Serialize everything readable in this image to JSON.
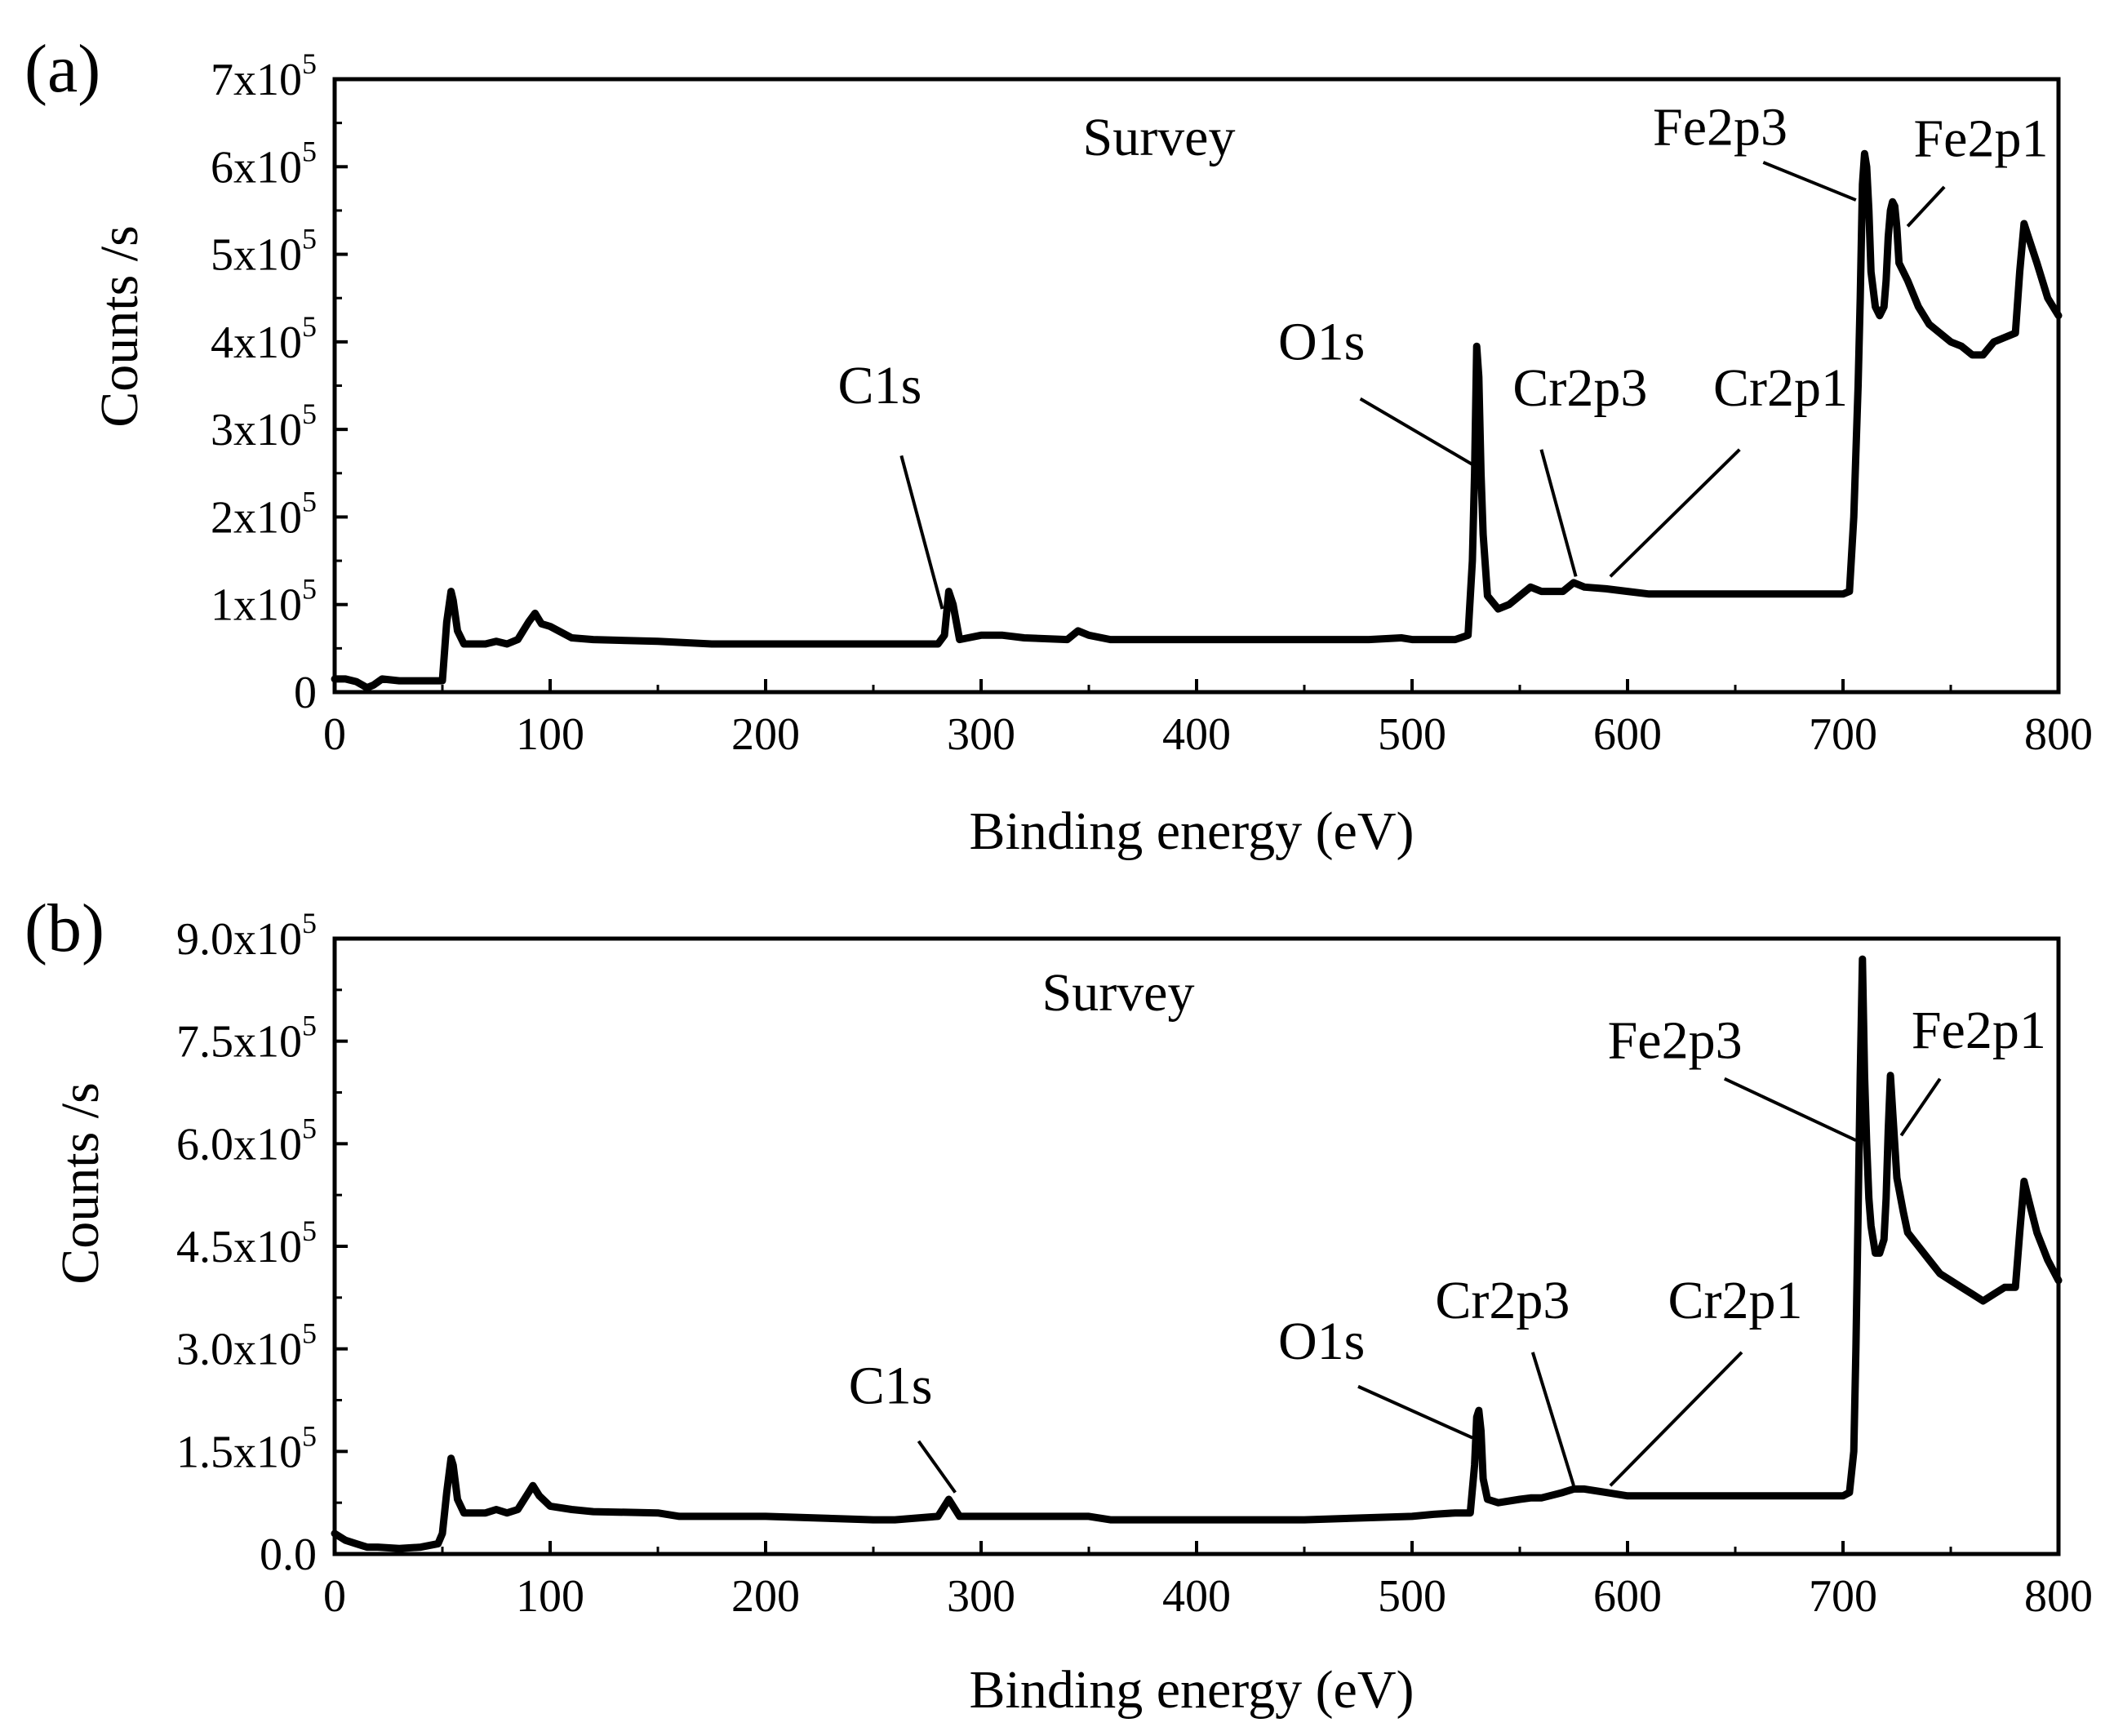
{
  "chart_data": [
    {
      "type": "line",
      "panel_label": "(a)",
      "title": "Survey",
      "xlabel": "Binding energy (eV)",
      "ylabel": "Counts /s",
      "xlim": [
        0,
        800
      ],
      "ylim": [
        0,
        700000
      ],
      "xticks": [
        {
          "value": 0,
          "label": "0"
        },
        {
          "value": 100,
          "label": "100"
        },
        {
          "value": 200,
          "label": "200"
        },
        {
          "value": 300,
          "label": "300"
        },
        {
          "value": 400,
          "label": "400"
        },
        {
          "value": 500,
          "label": "500"
        },
        {
          "value": 600,
          "label": "600"
        },
        {
          "value": 700,
          "label": "700"
        },
        {
          "value": 800,
          "label": "800"
        }
      ],
      "yticks": [
        {
          "value": 0,
          "label": "0",
          "exp": ""
        },
        {
          "value": 100000,
          "label": "1x10",
          "exp": "5"
        },
        {
          "value": 200000,
          "label": "2x10",
          "exp": "5"
        },
        {
          "value": 300000,
          "label": "3x10",
          "exp": "5"
        },
        {
          "value": 400000,
          "label": "4x10",
          "exp": "5"
        },
        {
          "value": 500000,
          "label": "5x10",
          "exp": "5"
        },
        {
          "value": 600000,
          "label": "6x10",
          "exp": "5"
        },
        {
          "value": 700000,
          "label": "7x10",
          "exp": "5"
        }
      ],
      "x": [
        0,
        5,
        10,
        15,
        18,
        22,
        30,
        35,
        50,
        52,
        54,
        55,
        57,
        60,
        70,
        75,
        80,
        85,
        90,
        93,
        96,
        100,
        110,
        120,
        150,
        175,
        200,
        240,
        270,
        280,
        283,
        285,
        287,
        290,
        300,
        310,
        320,
        340,
        345,
        350,
        360,
        400,
        440,
        480,
        495,
        500,
        510,
        520,
        526,
        528,
        529,
        530,
        531,
        532,
        533,
        535,
        540,
        545,
        555,
        560,
        570,
        575,
        580,
        590,
        600,
        610,
        620,
        640,
        680,
        700,
        703,
        705,
        707,
        708,
        709,
        710,
        711,
        712,
        713,
        715,
        717,
        719,
        720,
        721,
        722,
        723,
        724,
        725,
        726,
        728,
        730,
        735,
        740,
        745,
        750,
        755,
        760,
        765,
        770,
        775,
        780,
        782,
        784,
        786,
        790,
        795,
        800
      ],
      "values": [
        15000,
        15000,
        12000,
        5000,
        8000,
        15000,
        13000,
        13000,
        13000,
        80000,
        115000,
        105000,
        70000,
        55000,
        55000,
        58000,
        55000,
        60000,
        80000,
        90000,
        78000,
        75000,
        62000,
        60000,
        58000,
        55000,
        55000,
        55000,
        55000,
        55000,
        65000,
        115000,
        100000,
        60000,
        65000,
        65000,
        62000,
        60000,
        70000,
        65000,
        60000,
        60000,
        60000,
        60000,
        62000,
        60000,
        60000,
        60000,
        65000,
        150000,
        250000,
        395000,
        360000,
        250000,
        180000,
        110000,
        95000,
        100000,
        120000,
        115000,
        115000,
        125000,
        120000,
        118000,
        115000,
        112000,
        112000,
        112000,
        112000,
        112000,
        115000,
        200000,
        350000,
        450000,
        580000,
        615000,
        600000,
        550000,
        480000,
        440000,
        430000,
        440000,
        470000,
        520000,
        550000,
        560000,
        555000,
        530000,
        490000,
        480000,
        470000,
        440000,
        420000,
        410000,
        400000,
        395000,
        385000,
        385000,
        400000,
        405000,
        410000,
        480000,
        535000,
        520000,
        490000,
        450000,
        430000
      ],
      "annotations": [
        {
          "text": "C1s",
          "tx": 253,
          "ty": 330000,
          "x1": 263,
          "y1": 270000,
          "x2": 282,
          "y2": 95000
        },
        {
          "text": "O1s",
          "tx": 458,
          "ty": 380000,
          "x1": 476,
          "y1": 335000,
          "x2": 528,
          "y2": 260000
        },
        {
          "text": "Cr2p3",
          "tx": 578,
          "ty": 327000,
          "x1": 560,
          "y1": 277000,
          "x2": 576,
          "y2": 132000
        },
        {
          "text": "Cr2p1",
          "tx": 671,
          "ty": 327000,
          "x1": 652,
          "y1": 277000,
          "x2": 592,
          "y2": 132000
        },
        {
          "text": "Fe2p3",
          "tx": 643,
          "ty": 625000,
          "x1": 663,
          "y1": 605000,
          "x2": 706,
          "y2": 562000
        },
        {
          "text": "Fe2p1",
          "tx": 764,
          "ty": 612000,
          "x1": 747,
          "y1": 577000,
          "x2": 730,
          "y2": 532000
        }
      ]
    },
    {
      "type": "line",
      "panel_label": "(b)",
      "title": "Survey",
      "xlabel": "Binding energy (eV)",
      "ylabel": "Counts /s",
      "xlim": [
        0,
        800
      ],
      "ylim": [
        0,
        900000
      ],
      "xticks": [
        {
          "value": 0,
          "label": "0"
        },
        {
          "value": 100,
          "label": "100"
        },
        {
          "value": 200,
          "label": "200"
        },
        {
          "value": 300,
          "label": "300"
        },
        {
          "value": 400,
          "label": "400"
        },
        {
          "value": 500,
          "label": "500"
        },
        {
          "value": 600,
          "label": "600"
        },
        {
          "value": 700,
          "label": "700"
        },
        {
          "value": 800,
          "label": "800"
        }
      ],
      "yticks": [
        {
          "value": 0,
          "label": "0.0",
          "exp": ""
        },
        {
          "value": 150000,
          "label": "1.5x10",
          "exp": "5"
        },
        {
          "value": 300000,
          "label": "3.0x10",
          "exp": "5"
        },
        {
          "value": 450000,
          "label": "4.5x10",
          "exp": "5"
        },
        {
          "value": 600000,
          "label": "6.0x10",
          "exp": "5"
        },
        {
          "value": 750000,
          "label": "7.5x10",
          "exp": "5"
        },
        {
          "value": 900000,
          "label": "9.0x10",
          "exp": "5"
        }
      ],
      "x": [
        0,
        5,
        10,
        15,
        20,
        30,
        40,
        48,
        50,
        52,
        54,
        55,
        57,
        60,
        70,
        75,
        80,
        85,
        90,
        92,
        95,
        100,
        110,
        120,
        150,
        160,
        200,
        250,
        260,
        280,
        283,
        285,
        287,
        290,
        300,
        340,
        350,
        360,
        380,
        400,
        450,
        500,
        510,
        520,
        527,
        529,
        530,
        531,
        532,
        533,
        535,
        540,
        550,
        555,
        560,
        570,
        575,
        580,
        590,
        600,
        620,
        640,
        660,
        680,
        700,
        703,
        705,
        706,
        707,
        708,
        709,
        710,
        711,
        712,
        713,
        715,
        717,
        719,
        720,
        721,
        722,
        723,
        725,
        728,
        730,
        735,
        740,
        745,
        750,
        755,
        760,
        765,
        770,
        775,
        780,
        782,
        784,
        786,
        790,
        795,
        800
      ],
      "values": [
        30000,
        20000,
        15000,
        10000,
        10000,
        8000,
        10000,
        15000,
        30000,
        90000,
        140000,
        130000,
        80000,
        60000,
        60000,
        65000,
        60000,
        65000,
        90000,
        100000,
        85000,
        70000,
        65000,
        62000,
        60000,
        55000,
        55000,
        50000,
        50000,
        55000,
        70000,
        80000,
        70000,
        55000,
        55000,
        55000,
        55000,
        50000,
        50000,
        50000,
        50000,
        55000,
        58000,
        60000,
        60000,
        130000,
        200000,
        210000,
        180000,
        110000,
        80000,
        75000,
        80000,
        82000,
        82000,
        90000,
        95000,
        95000,
        90000,
        85000,
        85000,
        85000,
        85000,
        85000,
        85000,
        90000,
        150000,
        300000,
        500000,
        700000,
        870000,
        700000,
        600000,
        520000,
        480000,
        440000,
        440000,
        460000,
        520000,
        620000,
        700000,
        650000,
        550000,
        500000,
        470000,
        450000,
        430000,
        410000,
        400000,
        390000,
        380000,
        370000,
        380000,
        390000,
        390000,
        470000,
        545000,
        520000,
        470000,
        430000,
        400000
      ],
      "annotations": [
        {
          "text": "C1s",
          "tx": 258,
          "ty": 220000,
          "x1": 271,
          "y1": 165000,
          "x2": 288,
          "y2": 90000
        },
        {
          "text": "O1s",
          "tx": 458,
          "ty": 285000,
          "x1": 475,
          "y1": 245000,
          "x2": 528,
          "y2": 170000
        },
        {
          "text": "Cr2p3",
          "tx": 542,
          "ty": 345000,
          "x1": 556,
          "y1": 295000,
          "x2": 575,
          "y2": 100000
        },
        {
          "text": "Cr2p1",
          "tx": 650,
          "ty": 345000,
          "x1": 653,
          "y1": 295000,
          "x2": 592,
          "y2": 100000
        },
        {
          "text": "Fe2p3",
          "tx": 622,
          "ty": 725000,
          "x1": 645,
          "y1": 695000,
          "x2": 706,
          "y2": 605000
        },
        {
          "text": "Fe2p1",
          "tx": 763,
          "ty": 740000,
          "x1": 745,
          "y1": 695000,
          "x2": 727,
          "y2": 612000
        }
      ]
    }
  ]
}
